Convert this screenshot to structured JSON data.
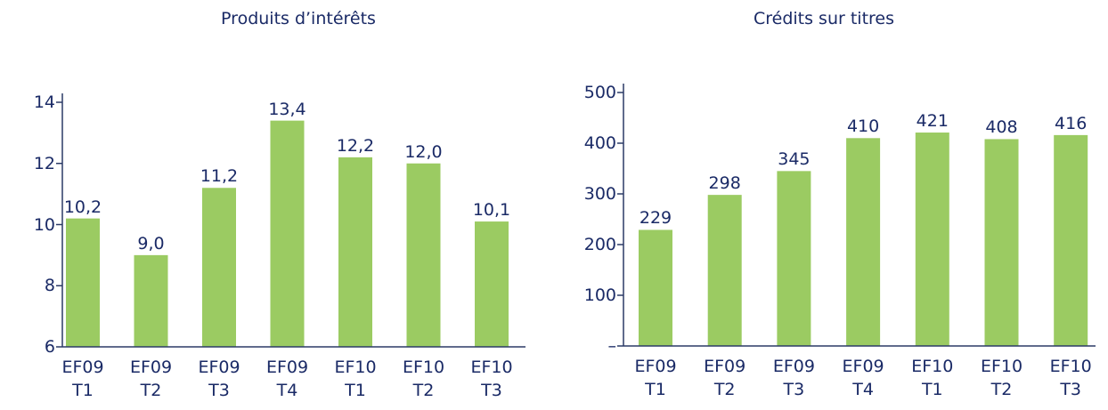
{
  "chart_data": [
    {
      "type": "bar",
      "title": "Produits d’intérêts",
      "categories": [
        "EF09 T1",
        "EF09 T2",
        "EF09 T3",
        "EF09 T4",
        "EF10 T1",
        "EF10 T2",
        "EF10 T3"
      ],
      "values": [
        10.2,
        9.0,
        11.2,
        13.4,
        12.2,
        12.0,
        10.1
      ],
      "value_labels": [
        "10,2",
        "9,0",
        "11,2",
        "13,4",
        "12,2",
        "12,0",
        "10,1"
      ],
      "color": "#9bcb62",
      "ylim": [
        6,
        14
      ],
      "yticks": [
        6,
        8,
        10,
        12,
        14
      ]
    },
    {
      "type": "bar",
      "title": "Crédits sur titres",
      "categories": [
        "EF09 T1",
        "EF09 T2",
        "EF09 T3",
        "EF09 T4",
        "EF10 T1",
        "EF10 T2",
        "EF10 T3"
      ],
      "values": [
        229,
        298,
        345,
        410,
        421,
        408,
        416
      ],
      "color": "#9bcb62",
      "ylim": [
        0,
        500
      ],
      "yticks": [
        {
          "value": 0,
          "label": "–"
        },
        100,
        200,
        300,
        400,
        500
      ]
    }
  ]
}
